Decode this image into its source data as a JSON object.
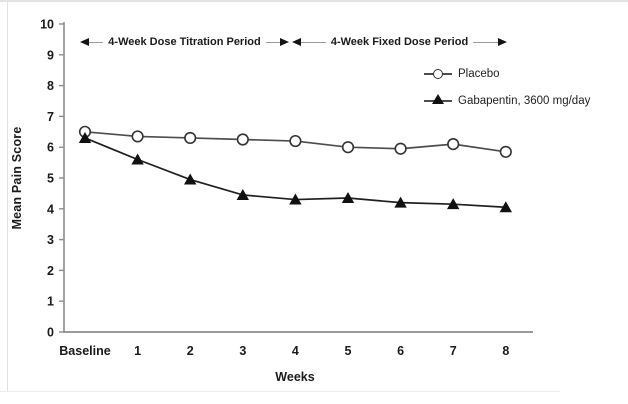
{
  "chart_data": {
    "type": "line",
    "title": "",
    "xlabel": "Weeks",
    "ylabel": "Mean Pain Score",
    "categories": [
      "Baseline",
      "1",
      "2",
      "3",
      "4",
      "5",
      "6",
      "7",
      "8"
    ],
    "ylim": [
      0,
      10
    ],
    "yticks": [
      0,
      1,
      2,
      3,
      4,
      5,
      6,
      7,
      8,
      9,
      10
    ],
    "grid": false,
    "legend_position": "upper-right-inside",
    "series": [
      {
        "name": "Placebo",
        "marker": "open-circle",
        "line_color": "#4d4d4d",
        "marker_fill": "#ffffff",
        "marker_stroke": "#333333",
        "values": [
          6.5,
          6.35,
          6.3,
          6.25,
          6.2,
          6.0,
          5.95,
          6.1,
          5.85
        ]
      },
      {
        "name": "Gabapentin, 3600 mg/day",
        "marker": "filled-triangle",
        "line_color": "#1f1f1f",
        "marker_fill": "#111111",
        "marker_stroke": "#111111",
        "values": [
          6.3,
          5.6,
          4.95,
          4.45,
          4.3,
          4.35,
          4.2,
          4.15,
          4.05
        ]
      }
    ],
    "annotations": [
      {
        "label": "4-Week Dose Titration Period",
        "x_start": 0,
        "x_end": 4
      },
      {
        "label": "4-Week Fixed Dose Period",
        "x_start": 4,
        "x_end": 8
      }
    ],
    "axis_color": "#8c8c8c",
    "tick_label_color": "#1a1a1a"
  }
}
